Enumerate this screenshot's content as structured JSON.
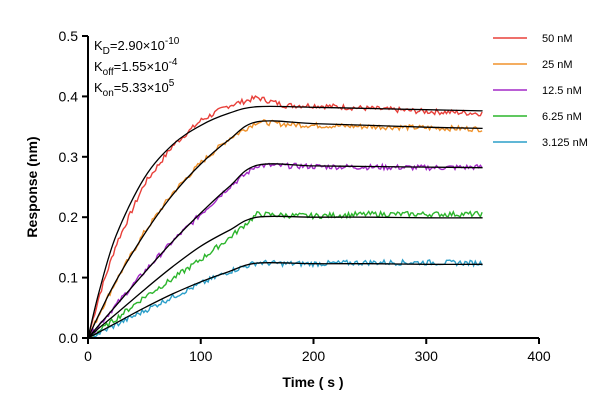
{
  "chart_data": {
    "type": "line",
    "xlabel": "Time ( s )",
    "ylabel": "Response (nm)",
    "xlim": [
      0,
      400
    ],
    "ylim": [
      0,
      0.5
    ],
    "xticks": [
      0,
      100,
      200,
      300,
      400
    ],
    "yticks": [
      0.0,
      0.1,
      0.2,
      0.3,
      0.4,
      0.5
    ],
    "xtick_labels": [
      "0",
      "100",
      "200",
      "300",
      "400"
    ],
    "ytick_labels": [
      "0.0",
      "0.1",
      "0.2",
      "0.3",
      "0.4",
      "0.5"
    ],
    "grid": false,
    "legend_position": "top-right",
    "association_end": 150,
    "annotations": [
      {
        "base": "K",
        "sub": "D",
        "value": "=2.90×10",
        "exp": "-10"
      },
      {
        "base": "K",
        "sub": "off",
        "value": "=1.55×10",
        "exp": "-4"
      },
      {
        "base": "K",
        "sub": "on",
        "value": "=5.33×10",
        "exp": "5"
      }
    ],
    "fit_color": "#000000",
    "series": [
      {
        "name": "50 nM",
        "color": "#e8403a",
        "measured": [
          [
            0,
            0
          ],
          [
            10,
            0.07
          ],
          [
            25,
            0.155
          ],
          [
            50,
            0.255
          ],
          [
            75,
            0.318
          ],
          [
            100,
            0.36
          ],
          [
            125,
            0.385
          ],
          [
            150,
            0.398
          ],
          [
            175,
            0.385
          ],
          [
            200,
            0.385
          ],
          [
            250,
            0.38
          ],
          [
            300,
            0.375
          ],
          [
            350,
            0.372
          ]
        ],
        "fit": [
          [
            0,
            0
          ],
          [
            10,
            0.078
          ],
          [
            25,
            0.17
          ],
          [
            50,
            0.265
          ],
          [
            75,
            0.32
          ],
          [
            100,
            0.352
          ],
          [
            125,
            0.372
          ],
          [
            150,
            0.383
          ],
          [
            200,
            0.382
          ],
          [
            250,
            0.38
          ],
          [
            300,
            0.378
          ],
          [
            350,
            0.376
          ]
        ]
      },
      {
        "name": "25 nM",
        "color": "#f0922b",
        "measured": [
          [
            0,
            0
          ],
          [
            10,
            0.04
          ],
          [
            25,
            0.095
          ],
          [
            50,
            0.175
          ],
          [
            75,
            0.24
          ],
          [
            100,
            0.29
          ],
          [
            125,
            0.33
          ],
          [
            150,
            0.358
          ],
          [
            175,
            0.354
          ],
          [
            200,
            0.352
          ],
          [
            250,
            0.35
          ],
          [
            300,
            0.348
          ],
          [
            350,
            0.346
          ]
        ],
        "fit": [
          [
            0,
            0
          ],
          [
            10,
            0.04
          ],
          [
            25,
            0.095
          ],
          [
            50,
            0.172
          ],
          [
            75,
            0.237
          ],
          [
            100,
            0.288
          ],
          [
            125,
            0.328
          ],
          [
            150,
            0.358
          ],
          [
            200,
            0.355
          ],
          [
            250,
            0.352
          ],
          [
            300,
            0.349
          ],
          [
            350,
            0.347
          ]
        ]
      },
      {
        "name": "12.5 nM",
        "color": "#a429c7",
        "measured": [
          [
            0,
            0
          ],
          [
            10,
            0.022
          ],
          [
            25,
            0.055
          ],
          [
            50,
            0.11
          ],
          [
            75,
            0.16
          ],
          [
            100,
            0.205
          ],
          [
            125,
            0.25
          ],
          [
            150,
            0.286
          ],
          [
            175,
            0.285
          ],
          [
            200,
            0.284
          ],
          [
            250,
            0.283
          ],
          [
            300,
            0.282
          ],
          [
            350,
            0.283
          ]
        ],
        "fit": [
          [
            0,
            0
          ],
          [
            10,
            0.022
          ],
          [
            25,
            0.054
          ],
          [
            50,
            0.108
          ],
          [
            75,
            0.16
          ],
          [
            100,
            0.207
          ],
          [
            125,
            0.25
          ],
          [
            150,
            0.286
          ],
          [
            200,
            0.285
          ],
          [
            250,
            0.284
          ],
          [
            300,
            0.283
          ],
          [
            350,
            0.282
          ]
        ]
      },
      {
        "name": "6.25 nM",
        "color": "#2cb52c",
        "measured": [
          [
            0,
            0
          ],
          [
            10,
            0.012
          ],
          [
            25,
            0.032
          ],
          [
            50,
            0.068
          ],
          [
            75,
            0.098
          ],
          [
            100,
            0.13
          ],
          [
            125,
            0.165
          ],
          [
            150,
            0.205
          ],
          [
            175,
            0.203
          ],
          [
            200,
            0.202
          ],
          [
            250,
            0.205
          ],
          [
            300,
            0.205
          ],
          [
            350,
            0.205
          ]
        ],
        "fit": [
          [
            0,
            0
          ],
          [
            10,
            0.017
          ],
          [
            25,
            0.04
          ],
          [
            50,
            0.08
          ],
          [
            75,
            0.118
          ],
          [
            100,
            0.152
          ],
          [
            125,
            0.178
          ],
          [
            150,
            0.2
          ],
          [
            200,
            0.2
          ],
          [
            250,
            0.2
          ],
          [
            300,
            0.199
          ],
          [
            350,
            0.199
          ]
        ]
      },
      {
        "name": "3.125 nM",
        "color": "#2c9fc9",
        "measured": [
          [
            0,
            0
          ],
          [
            10,
            0.008
          ],
          [
            25,
            0.022
          ],
          [
            50,
            0.045
          ],
          [
            75,
            0.068
          ],
          [
            100,
            0.09
          ],
          [
            125,
            0.11
          ],
          [
            150,
            0.125
          ],
          [
            175,
            0.123
          ],
          [
            200,
            0.123
          ],
          [
            250,
            0.125
          ],
          [
            300,
            0.125
          ],
          [
            350,
            0.124
          ]
        ],
        "fit": [
          [
            0,
            0
          ],
          [
            10,
            0.01
          ],
          [
            25,
            0.025
          ],
          [
            50,
            0.05
          ],
          [
            75,
            0.073
          ],
          [
            100,
            0.093
          ],
          [
            125,
            0.11
          ],
          [
            150,
            0.124
          ],
          [
            200,
            0.123
          ],
          [
            250,
            0.123
          ],
          [
            300,
            0.122
          ],
          [
            350,
            0.122
          ]
        ]
      }
    ]
  }
}
